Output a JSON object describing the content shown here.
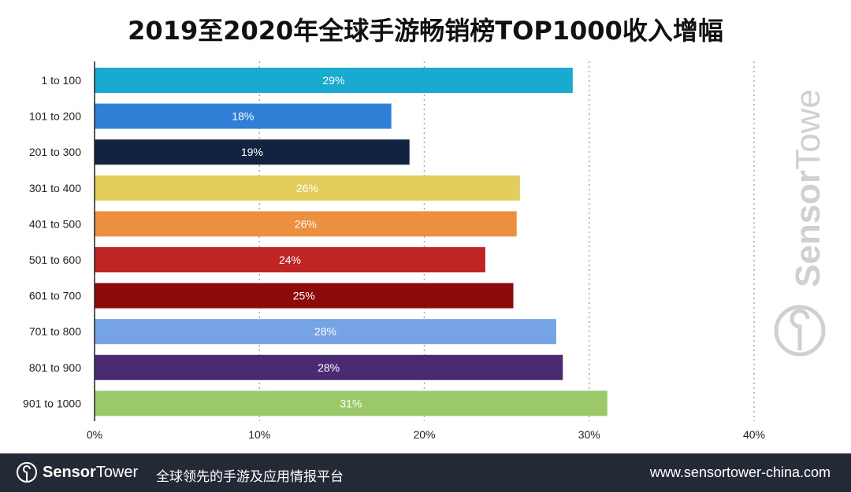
{
  "chart_data": {
    "type": "bar",
    "orientation": "horizontal",
    "title": "2019至2020年全球手游畅销榜TOP1000收入增幅",
    "categories": [
      "1 to 100",
      "101 to 200",
      "201 to 300",
      "301 to 400",
      "401 to 500",
      "501 to 600",
      "601 to 700",
      "701 to 800",
      "801 to 900",
      "901 to 1000"
    ],
    "values": [
      29,
      18,
      19.1,
      25.8,
      25.6,
      23.7,
      25.4,
      28,
      28.4,
      31.1
    ],
    "data_labels": [
      "29%",
      "18%",
      "19%",
      "26%",
      "26%",
      "24%",
      "25%",
      "28%",
      "28%",
      "31%"
    ],
    "colors": [
      "#1aa9cf",
      "#2f7fd6",
      "#12233f",
      "#e3cd5c",
      "#ec8f3f",
      "#c02525",
      "#8e0a0a",
      "#75a3e3",
      "#4a2a73",
      "#9bc96a"
    ],
    "xlim": [
      0,
      40
    ],
    "xticks": [
      0,
      10,
      20,
      30,
      40
    ],
    "xtick_labels": [
      "0%",
      "10%",
      "20%",
      "30%",
      "40%"
    ],
    "grid": "vertical dotted"
  },
  "watermark": "SensorTower",
  "footer": {
    "brand_a": "Sensor",
    "brand_b": "Tower",
    "slogan": "全球领先的手游及应用情报平台",
    "url": "www.sensortower-china.com"
  }
}
